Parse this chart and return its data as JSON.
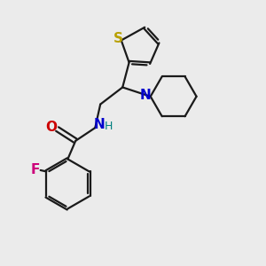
{
  "bg_color": "#ebebeb",
  "bond_color": "#1a1a1a",
  "S_color": "#b8a000",
  "N_amide_color": "#0000cc",
  "N_piperidine_color": "#0000cc",
  "O_color": "#cc0000",
  "F_color": "#cc007a",
  "H_color": "#008080",
  "figsize": [
    3.0,
    3.0
  ],
  "dpi": 100,
  "xlim": [
    0,
    10
  ],
  "ylim": [
    0,
    10
  ]
}
